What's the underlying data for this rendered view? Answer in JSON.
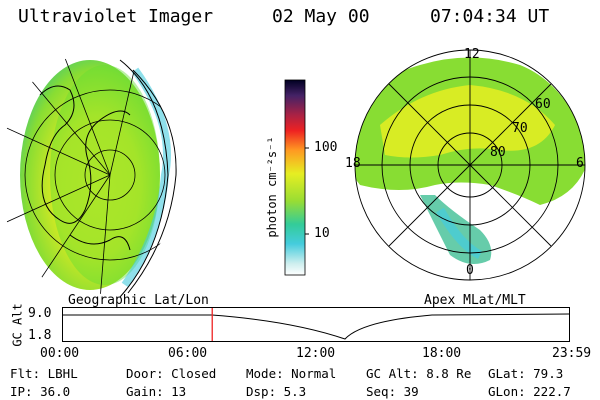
{
  "header": {
    "title": "Ultraviolet Imager",
    "date": "02 May 00",
    "time": "07:04:34 UT"
  },
  "left_panel": {
    "label": "Geographic Lat/Lon"
  },
  "right_panel": {
    "label": "Apex MLat/MLT",
    "mlt_labels": {
      "top": "12",
      "left": "18",
      "right": "6",
      "bottom": "0"
    },
    "lat_labels": [
      "60",
      "70",
      "80"
    ]
  },
  "colorbar": {
    "unit_label": "photon cm⁻²s⁻¹",
    "tick_100": "100",
    "tick_10": "10"
  },
  "altitude_plot": {
    "ylabel": "GC Alt",
    "y_top": "9.0",
    "y_bottom": "1.8",
    "x_ticks": [
      "00:00",
      "06:00",
      "12:00",
      "18:00",
      "23:59"
    ],
    "current_time_fraction": 0.2949
  },
  "status": {
    "flt": "Flt: LBHL",
    "ip": "IP: 36.0",
    "door": "Door: Closed",
    "gain": "Gain: 13",
    "mode": "Mode: Normal",
    "dsp": "Dsp:    5.3",
    "gc_alt": "GC Alt: 8.8 Re",
    "seq": "Seq: 39",
    "glat": "GLat:  79.3",
    "glon": "GLon: 222.7"
  },
  "colors": {
    "aurora_green": "#66dd33",
    "aurora_yellow": "#e6ee22",
    "aurora_cyan": "#44ccdd",
    "cursor_red": "#ee2222"
  }
}
